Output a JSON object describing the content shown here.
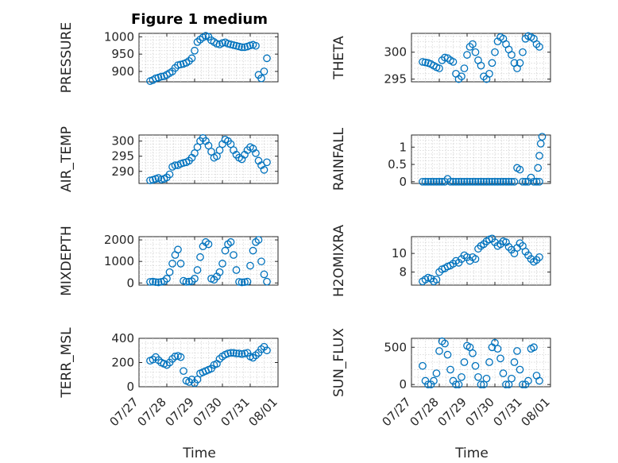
{
  "figure_title": "Figure 1 medium",
  "colors": {
    "marker": "#0072BD",
    "axis": "#262626",
    "grid": "#c8c8c8"
  },
  "x_ticks": [
    "07/27",
    "07/28",
    "07/29",
    "07/30",
    "07/31",
    "08/01"
  ],
  "xlabel": "Time",
  "chart_data": [
    {
      "type": "scatter",
      "title": "Figure 1 medium",
      "ylabel": "PRESSURE",
      "xlim": [
        0,
        5
      ],
      "ylim": [
        870,
        1010
      ],
      "yticks": [
        900,
        950,
        1000
      ],
      "grid": true,
      "x": [
        0.4,
        0.5,
        0.6,
        0.7,
        0.8,
        0.9,
        1.0,
        1.1,
        1.2,
        1.3,
        1.4,
        1.5,
        1.6,
        1.7,
        1.8,
        1.9,
        2.0,
        2.1,
        2.2,
        2.3,
        2.4,
        2.5,
        2.6,
        2.7,
        2.8,
        2.9,
        3.0,
        3.1,
        3.2,
        3.3,
        3.4,
        3.5,
        3.6,
        3.7,
        3.8,
        3.9,
        4.0,
        4.1,
        4.2,
        4.3,
        4.4,
        4.5,
        4.6
      ],
      "y": [
        872,
        875,
        880,
        882,
        885,
        886,
        890,
        895,
        900,
        910,
        918,
        920,
        922,
        925,
        930,
        938,
        960,
        985,
        992,
        998,
        1003,
        1000,
        990,
        985,
        980,
        978,
        982,
        984,
        980,
        978,
        976,
        974,
        972,
        970,
        970,
        972,
        975,
        977,
        974,
        890,
        880,
        900,
        938
      ]
    },
    {
      "type": "scatter",
      "ylabel": "THETA",
      "xlim": [
        0,
        5
      ],
      "ylim": [
        294.5,
        303.5
      ],
      "yticks": [
        295,
        300
      ],
      "grid": true,
      "x": [
        0.4,
        0.5,
        0.6,
        0.7,
        0.8,
        0.9,
        1.0,
        1.1,
        1.2,
        1.3,
        1.4,
        1.5,
        1.6,
        1.7,
        1.8,
        1.9,
        2.0,
        2.1,
        2.2,
        2.3,
        2.4,
        2.5,
        2.6,
        2.7,
        2.8,
        2.9,
        3.0,
        3.1,
        3.2,
        3.3,
        3.4,
        3.5,
        3.6,
        3.7,
        3.8,
        3.9,
        4.0,
        4.1,
        4.2,
        4.3,
        4.4,
        4.5,
        4.6
      ],
      "y": [
        298.2,
        298.1,
        298.0,
        297.8,
        297.5,
        297.2,
        297.0,
        298.5,
        299.0,
        298.9,
        298.5,
        298.2,
        296.0,
        295.0,
        295.5,
        297.0,
        299.5,
        301.0,
        301.5,
        300.0,
        298.5,
        297.5,
        295.5,
        295.0,
        296.0,
        298.0,
        300.0,
        302.0,
        302.8,
        302.5,
        301.5,
        300.5,
        299.5,
        298.0,
        297.0,
        298.0,
        300.0,
        302.5,
        303.0,
        302.8,
        302.5,
        301.5,
        301.0
      ]
    },
    {
      "type": "scatter",
      "ylabel": "AIR_TEMP",
      "xlim": [
        0,
        5
      ],
      "ylim": [
        286,
        302
      ],
      "yticks": [
        290,
        295,
        300
      ],
      "grid": true,
      "x": [
        0.4,
        0.5,
        0.6,
        0.7,
        0.8,
        0.9,
        1.0,
        1.1,
        1.2,
        1.3,
        1.4,
        1.5,
        1.6,
        1.7,
        1.8,
        1.9,
        2.0,
        2.1,
        2.2,
        2.3,
        2.4,
        2.5,
        2.6,
        2.7,
        2.8,
        2.9,
        3.0,
        3.1,
        3.2,
        3.3,
        3.4,
        3.5,
        3.6,
        3.7,
        3.8,
        3.9,
        4.0,
        4.1,
        4.2,
        4.3,
        4.4,
        4.5,
        4.6
      ],
      "y": [
        287.0,
        287.2,
        287.5,
        287.8,
        287.3,
        287.5,
        288.0,
        289.0,
        291.5,
        292.0,
        292.0,
        292.5,
        292.8,
        293.0,
        293.5,
        294.5,
        296.0,
        298.0,
        300.0,
        301.0,
        300.0,
        298.5,
        296.5,
        294.5,
        295.0,
        297.0,
        299.0,
        300.5,
        300.0,
        299.0,
        297.0,
        295.5,
        294.5,
        294.0,
        295.5,
        297.0,
        298.0,
        297.5,
        296.0,
        293.5,
        292.0,
        290.5,
        293.0
      ]
    },
    {
      "type": "scatter",
      "ylabel": "RAINFALL",
      "xlim": [
        0,
        5
      ],
      "ylim": [
        -0.05,
        1.35
      ],
      "yticks": [
        0,
        0.5,
        1
      ],
      "grid": true,
      "x": [
        0.4,
        0.5,
        0.6,
        0.7,
        0.8,
        0.9,
        1.0,
        1.1,
        1.2,
        1.3,
        1.4,
        1.5,
        1.6,
        1.7,
        1.8,
        1.9,
        2.0,
        2.1,
        2.2,
        2.3,
        2.4,
        2.5,
        2.6,
        2.7,
        2.8,
        2.9,
        3.0,
        3.1,
        3.2,
        3.3,
        3.4,
        3.5,
        3.6,
        3.7,
        3.8,
        3.9,
        4.0,
        4.1,
        4.2,
        4.3,
        4.4,
        4.5,
        4.6,
        4.55,
        4.6,
        4.65,
        4.7
      ],
      "y": [
        0,
        0,
        0,
        0,
        0,
        0,
        0,
        0,
        0,
        0.08,
        0,
        0,
        0,
        0,
        0,
        0,
        0,
        0,
        0,
        0,
        0,
        0,
        0,
        0,
        0,
        0,
        0,
        0,
        0,
        0,
        0,
        0,
        0,
        0,
        0.4,
        0.35,
        0,
        0,
        0,
        0.12,
        0,
        0,
        0,
        0.4,
        0.75,
        1.1,
        1.3
      ]
    },
    {
      "type": "scatter",
      "ylabel": "MIXDEPTH",
      "xlim": [
        0,
        5
      ],
      "ylim": [
        -100,
        2150
      ],
      "yticks": [
        0,
        1000,
        2000
      ],
      "grid": true,
      "x": [
        0.4,
        0.5,
        0.6,
        0.7,
        0.8,
        0.9,
        1.0,
        1.1,
        1.2,
        1.3,
        1.4,
        1.5,
        1.6,
        1.7,
        1.8,
        1.9,
        2.0,
        2.1,
        2.2,
        2.3,
        2.4,
        2.5,
        2.6,
        2.7,
        2.8,
        2.9,
        3.0,
        3.1,
        3.2,
        3.3,
        3.4,
        3.5,
        3.6,
        3.7,
        3.8,
        3.9,
        4.0,
        4.1,
        4.2,
        4.3,
        4.4,
        4.5,
        4.6
      ],
      "y": [
        50,
        60,
        40,
        30,
        50,
        80,
        200,
        500,
        900,
        1300,
        1550,
        900,
        100,
        50,
        60,
        80,
        200,
        600,
        1200,
        1700,
        1900,
        1800,
        200,
        150,
        300,
        500,
        900,
        1500,
        1800,
        1900,
        1300,
        600,
        50,
        30,
        40,
        60,
        800,
        1500,
        1900,
        2000,
        1000,
        400,
        60
      ]
    },
    {
      "type": "scatter",
      "ylabel": "H2OMIXRA",
      "xlim": [
        0,
        5
      ],
      "ylim": [
        6.6,
        11.8
      ],
      "yticks": [
        8,
        10
      ],
      "grid": true,
      "x": [
        0.4,
        0.5,
        0.6,
        0.7,
        0.8,
        0.9,
        1.0,
        1.1,
        1.2,
        1.3,
        1.4,
        1.5,
        1.6,
        1.7,
        1.8,
        1.9,
        2.0,
        2.1,
        2.2,
        2.3,
        2.4,
        2.5,
        2.6,
        2.7,
        2.8,
        2.9,
        3.0,
        3.1,
        3.2,
        3.3,
        3.4,
        3.5,
        3.6,
        3.7,
        3.8,
        3.9,
        4.0,
        4.1,
        4.2,
        4.3,
        4.4,
        4.5,
        4.6
      ],
      "y": [
        7.0,
        7.2,
        7.4,
        7.3,
        7.0,
        7.2,
        8.0,
        8.3,
        8.4,
        8.6,
        8.7,
        8.9,
        9.2,
        9.0,
        9.4,
        9.8,
        9.6,
        9.2,
        9.6,
        9.4,
        10.5,
        10.8,
        11.0,
        11.3,
        11.5,
        11.6,
        11.2,
        10.8,
        11.0,
        11.3,
        11.2,
        10.7,
        10.4,
        10.0,
        10.6,
        11.1,
        10.8,
        10.2,
        9.8,
        9.4,
        9.1,
        9.3,
        9.6
      ]
    },
    {
      "type": "scatter",
      "ylabel": "TERR_MSL",
      "xlim": [
        0,
        5
      ],
      "ylim": [
        0,
        400
      ],
      "yticks": [
        0,
        200,
        400
      ],
      "grid": true,
      "x": [
        0.4,
        0.5,
        0.6,
        0.7,
        0.8,
        0.9,
        1.0,
        1.1,
        1.2,
        1.3,
        1.4,
        1.5,
        1.6,
        1.7,
        1.8,
        1.9,
        2.0,
        2.1,
        2.2,
        2.3,
        2.4,
        2.5,
        2.6,
        2.7,
        2.8,
        2.9,
        3.0,
        3.1,
        3.2,
        3.3,
        3.4,
        3.5,
        3.6,
        3.7,
        3.8,
        3.9,
        4.0,
        4.1,
        4.2,
        4.3,
        4.4,
        4.5,
        4.6
      ],
      "y": [
        215,
        225,
        245,
        220,
        200,
        190,
        180,
        200,
        230,
        250,
        255,
        245,
        130,
        50,
        40,
        60,
        30,
        60,
        110,
        120,
        130,
        140,
        150,
        180,
        190,
        230,
        250,
        265,
        275,
        280,
        280,
        275,
        275,
        270,
        275,
        280,
        250,
        240,
        260,
        280,
        310,
        330,
        300
      ]
    },
    {
      "type": "scatter",
      "ylabel": "SUN_FLUX",
      "xlim": [
        0,
        5
      ],
      "ylim": [
        -30,
        620
      ],
      "yticks": [
        0,
        500
      ],
      "grid": true,
      "x": [
        0.4,
        0.5,
        0.6,
        0.7,
        0.8,
        0.9,
        1.0,
        1.1,
        1.2,
        1.3,
        1.4,
        1.5,
        1.6,
        1.7,
        1.8,
        1.9,
        2.0,
        2.1,
        2.2,
        2.3,
        2.4,
        2.5,
        2.6,
        2.7,
        2.8,
        2.9,
        3.0,
        3.1,
        3.2,
        3.3,
        3.4,
        3.5,
        3.6,
        3.7,
        3.8,
        3.9,
        4.0,
        4.1,
        4.2,
        4.3,
        4.4,
        4.5,
        4.6
      ],
      "y": [
        250,
        50,
        0,
        0,
        50,
        150,
        450,
        580,
        550,
        400,
        200,
        50,
        0,
        0,
        100,
        300,
        520,
        500,
        420,
        250,
        100,
        0,
        0,
        80,
        300,
        500,
        560,
        480,
        350,
        150,
        0,
        0,
        80,
        300,
        450,
        200,
        0,
        0,
        50,
        480,
        500,
        120,
        50
      ]
    }
  ]
}
